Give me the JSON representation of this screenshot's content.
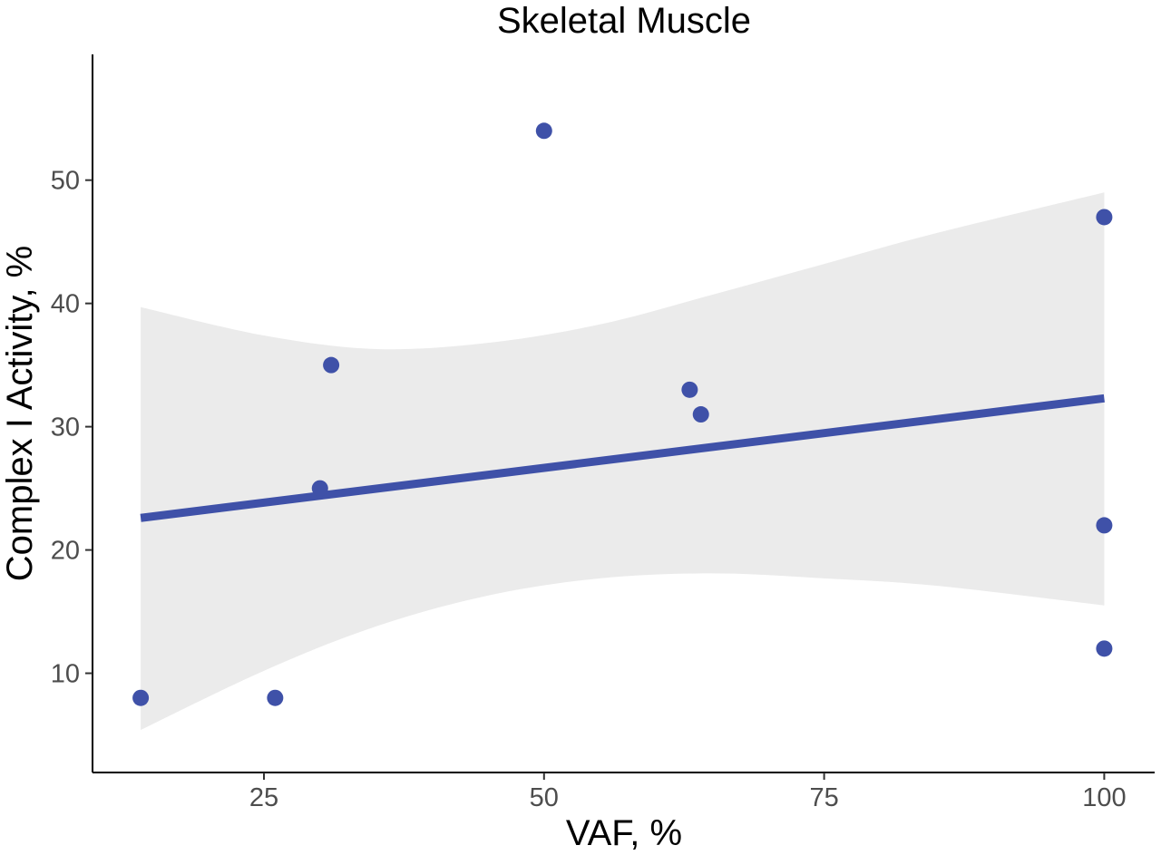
{
  "chart_data": {
    "type": "scatter",
    "title": "Skeletal Muscle",
    "xlabel": "VAF, %",
    "ylabel": "Complex I Activity, %",
    "xlim": [
      9.7,
      104.5
    ],
    "ylim": [
      1.95,
      60.2
    ],
    "x_ticks": [
      25,
      50,
      75,
      100
    ],
    "y_ticks": [
      10,
      20,
      30,
      40,
      50
    ],
    "grid": false,
    "legend": "none",
    "point_color": "#3F51A8",
    "line_color": "#3F51A8",
    "band_color": "#EBEBEB",
    "axis_color": "#000000",
    "points": [
      {
        "x": 14,
        "y": 8
      },
      {
        "x": 26,
        "y": 8
      },
      {
        "x": 30,
        "y": 25
      },
      {
        "x": 31,
        "y": 35
      },
      {
        "x": 50,
        "y": 54
      },
      {
        "x": 63,
        "y": 33
      },
      {
        "x": 64,
        "y": 31
      },
      {
        "x": 100,
        "y": 47
      },
      {
        "x": 100,
        "y": 22
      },
      {
        "x": 100,
        "y": 12
      }
    ],
    "fit_line": [
      {
        "x": 14,
        "y": 22.6
      },
      {
        "x": 100,
        "y": 32.3
      }
    ],
    "confidence_band": [
      {
        "x": 14,
        "lower": 5.4,
        "upper": 39.7
      },
      {
        "x": 25,
        "lower": 10.2,
        "upper": 37.4
      },
      {
        "x": 35,
        "lower": 13.8,
        "upper": 36.3
      },
      {
        "x": 45,
        "lower": 16.3,
        "upper": 36.8
      },
      {
        "x": 55,
        "lower": 17.7,
        "upper": 38.3
      },
      {
        "x": 65,
        "lower": 18.1,
        "upper": 40.7
      },
      {
        "x": 75,
        "lower": 17.7,
        "upper": 43.2
      },
      {
        "x": 85,
        "lower": 17.1,
        "upper": 45.7
      },
      {
        "x": 100,
        "lower": 15.5,
        "upper": 49.0
      }
    ]
  }
}
